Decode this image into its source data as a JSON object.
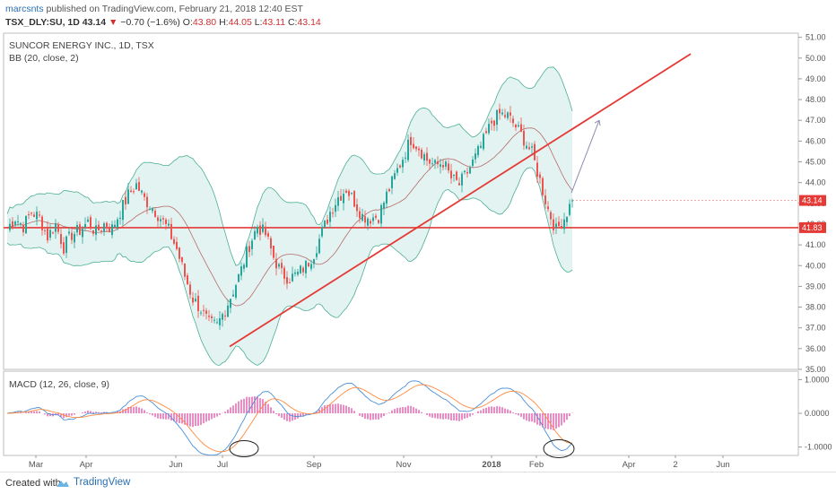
{
  "header": {
    "author": "marcsnts",
    "published": "published on TradingView.com, February 21, 2018 12:40 EST",
    "symbol": "TSX_DLY:SU, 1D",
    "last": "43.14",
    "arrow": "▼",
    "change": "−0.70 (−1.6%)",
    "o_label": "O:",
    "o_val": "43.80",
    "h_label": "H:",
    "h_val": "44.05",
    "l_label": "L:",
    "l_val": "43.11",
    "c_label": "C:",
    "c_val": "43.14"
  },
  "legend": {
    "title": "SUNCOR ENERGY INC., 1D, TSX",
    "bb": "BB (20, close, 2)",
    "macd": "MACD (12, 26, close, 9)"
  },
  "footer": {
    "created": "Created with",
    "brand": "TradingView"
  },
  "colors": {
    "up": "#26a69a",
    "down": "#ef5350",
    "bb_fill": "#e0f2ef",
    "bb_line": "#4caf93",
    "basis": "#b86b6b",
    "trend": "#e53935",
    "macd": "#4a90d9",
    "signal": "#ff8a3d",
    "hist": "#e040a0"
  },
  "chart_data": [
    {
      "type": "candlestick",
      "title": "SUNCOR ENERGY INC., 1D, TSX",
      "x_ticks": [
        "Mar",
        "Apr",
        "Jun",
        "Jul",
        "Sep",
        "Nov",
        "2018",
        "Feb",
        "Apr",
        "2",
        "Jun"
      ],
      "y_ticks": [
        "35.00",
        "36.00",
        "37.00",
        "38.00",
        "39.00",
        "40.00",
        "41.00",
        "42.00",
        "43.00",
        "44.00",
        "45.00",
        "46.00",
        "47.00",
        "48.00",
        "49.00",
        "50.00",
        "51.00"
      ],
      "ylim": [
        35,
        51.2
      ],
      "last_price": 43.14,
      "horizontal_level": 41.83,
      "close_path": [
        [
          0,
          41.8
        ],
        [
          3,
          42.3
        ],
        [
          6,
          41.9
        ],
        [
          9,
          42.6
        ],
        [
          12,
          42.3
        ],
        [
          15,
          41.4
        ],
        [
          18,
          42.0
        ],
        [
          21,
          40.9
        ],
        [
          24,
          41.5
        ],
        [
          27,
          41.7
        ],
        [
          30,
          42.1
        ],
        [
          33,
          41.6
        ],
        [
          36,
          42.0
        ],
        [
          39,
          41.8
        ],
        [
          42,
          42.6
        ],
        [
          45,
          43.4
        ],
        [
          48,
          43.9
        ],
        [
          51,
          43.2
        ],
        [
          54,
          42.8
        ],
        [
          57,
          42.3
        ],
        [
          60,
          41.7
        ],
        [
          63,
          40.8
        ],
        [
          66,
          39.5
        ],
        [
          69,
          38.4
        ],
        [
          72,
          37.9
        ],
        [
          75,
          37.2
        ],
        [
          78,
          37.1
        ],
        [
          81,
          37.9
        ],
        [
          84,
          38.8
        ],
        [
          87,
          39.8
        ],
        [
          90,
          41.0
        ],
        [
          93,
          41.9
        ],
        [
          96,
          41.5
        ],
        [
          99,
          40.4
        ],
        [
          102,
          39.6
        ],
        [
          105,
          39.4
        ],
        [
          108,
          39.6
        ],
        [
          111,
          40.0
        ],
        [
          114,
          40.6
        ],
        [
          117,
          41.6
        ],
        [
          120,
          42.6
        ],
        [
          123,
          43.3
        ],
        [
          126,
          43.7
        ],
        [
          129,
          43.1
        ],
        [
          132,
          42.4
        ],
        [
          135,
          42.3
        ],
        [
          138,
          42.4
        ],
        [
          141,
          43.4
        ],
        [
          144,
          44.3
        ],
        [
          147,
          45.2
        ],
        [
          150,
          46.1
        ],
        [
          153,
          45.7
        ],
        [
          156,
          45.1
        ],
        [
          159,
          44.8
        ],
        [
          162,
          45.0
        ],
        [
          165,
          44.2
        ],
        [
          168,
          43.9
        ],
        [
          171,
          44.5
        ],
        [
          174,
          45.2
        ],
        [
          177,
          46.0
        ],
        [
          180,
          46.9
        ],
        [
          183,
          47.3
        ],
        [
          186,
          47.2
        ],
        [
          189,
          46.7
        ],
        [
          192,
          46.1
        ],
        [
          195,
          45.4
        ],
        [
          198,
          44.1
        ],
        [
          201,
          42.7
        ],
        [
          204,
          41.7
        ],
        [
          207,
          42.3
        ],
        [
          210,
          43.14
        ]
      ],
      "trendline": {
        "start": [
          "Jul",
          36.1
        ],
        "end": [
          "beyond Apr",
          50.2
        ]
      },
      "projection_arrow": {
        "start": 43.5,
        "end": 47.0
      },
      "bollinger": {
        "period": 20,
        "mult": 2,
        "source": "close"
      },
      "macd": {
        "fast": 12,
        "slow": 26,
        "signal": 9,
        "y_ticks": [
          "1.0000",
          "0.0000",
          "-1.0000"
        ],
        "ylim": [
          -1.25,
          1.25
        ]
      }
    }
  ]
}
